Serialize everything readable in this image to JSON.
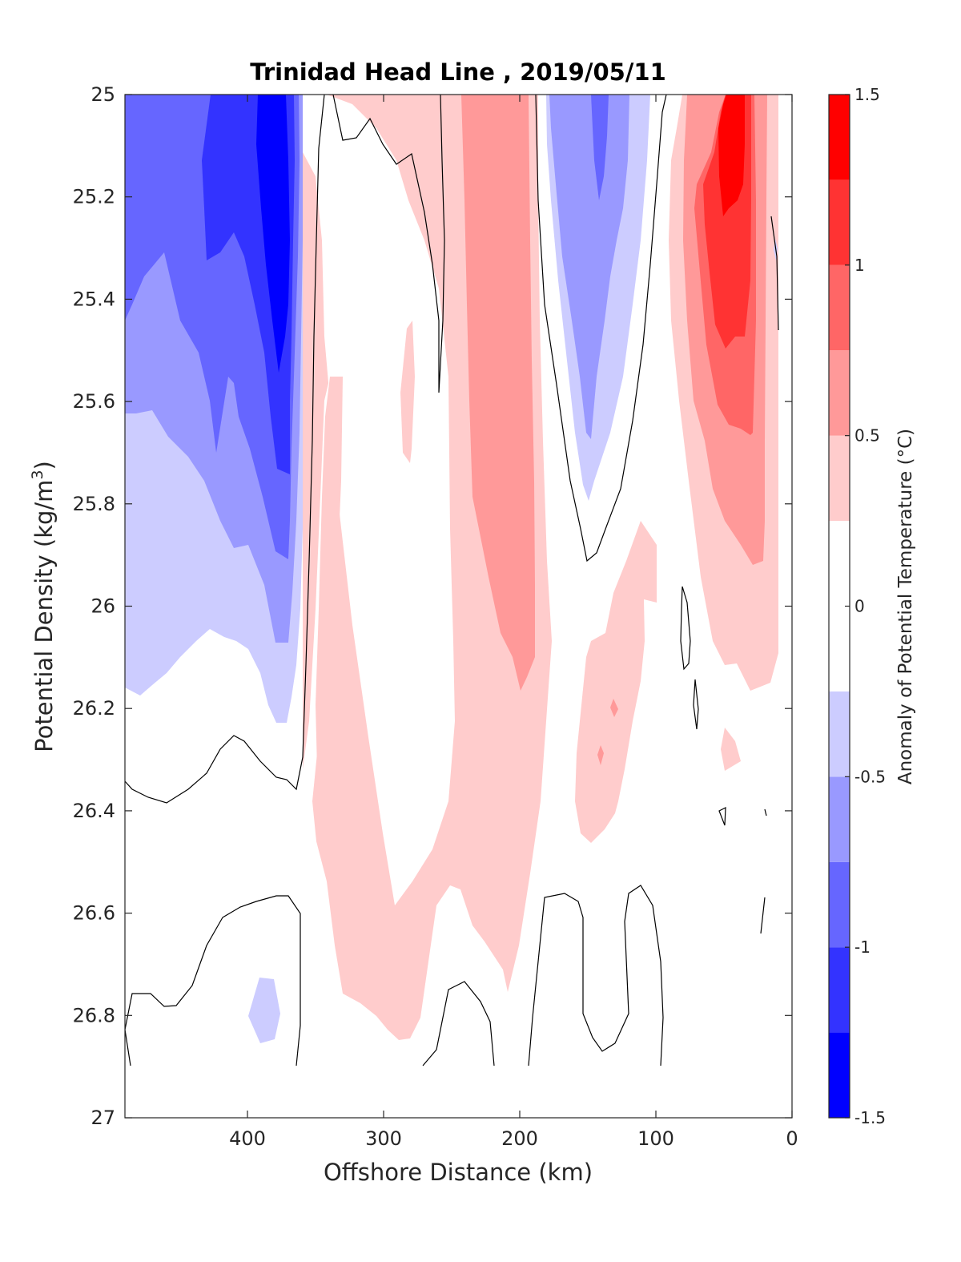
{
  "chart_data": {
    "type": "heatmap",
    "subtype": "filled-contour",
    "title": "Trinidad Head Line , 2019/05/11",
    "xlabel": "Offshore Distance (km)",
    "ylabel": "Potential Density (kg/m",
    "ylabel_sup": "3",
    "ylabel_close": ")",
    "x_reversed": true,
    "y_reversed": true,
    "xlim": [
      0,
      490
    ],
    "ylim": [
      25,
      27
    ],
    "x_ticks": [
      400,
      300,
      200,
      100,
      0
    ],
    "x_tick_labels": [
      "400",
      "300",
      "200",
      "100",
      "0"
    ],
    "y_ticks": [
      25,
      25.2,
      25.4,
      25.6,
      25.8,
      26,
      26.2,
      26.4,
      26.6,
      26.8,
      27
    ],
    "y_tick_labels": [
      "25",
      "25.2",
      "25.4",
      "25.6",
      "25.8",
      "26",
      "26.2",
      "26.4",
      "26.6",
      "26.8",
      "27"
    ],
    "colorbar": {
      "label": "Anomaly of Potential Temperature (°C)",
      "limits": [
        -1.5,
        1.5
      ],
      "ticks": [
        1.5,
        1,
        0.5,
        0,
        -0.5,
        -1,
        -1.5
      ],
      "tick_labels": [
        "1.5",
        "1",
        "0.5",
        "0",
        "-0.5",
        "-1",
        "-1.5"
      ],
      "levels": [
        -1.5,
        -1.25,
        -1.0,
        -0.75,
        -0.5,
        -0.25,
        0.25,
        0.5,
        0.75,
        1.0,
        1.25,
        1.5
      ],
      "colors": [
        "#0000ff",
        "#3333ff",
        "#6666ff",
        "#9999ff",
        "#ccccff",
        "#ffffff",
        "#ffcccc",
        "#ff9999",
        "#ff6666",
        "#ff3333",
        "#ff0000"
      ]
    },
    "zero_contour_color": "#000000",
    "grid": false,
    "anomaly_features": [
      {
        "x": [
          360,
          490
        ],
        "density": [
          25.0,
          26.2
        ],
        "peak_anomaly": -1.5
      },
      {
        "x": [
          180,
          250
        ],
        "density": [
          25.0,
          26.75
        ],
        "peak_anomaly": 0.75
      },
      {
        "x": [
          110,
          180
        ],
        "density": [
          25.0,
          25.9
        ],
        "peak_anomaly": -0.75
      },
      {
        "x": [
          10,
          90
        ],
        "density": [
          25.0,
          26.15
        ],
        "peak_anomaly": 1.5
      }
    ]
  }
}
